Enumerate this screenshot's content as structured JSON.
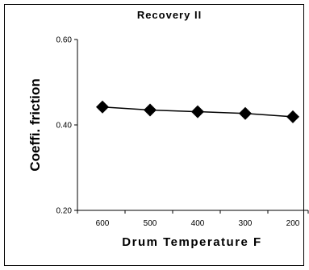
{
  "chart_data": {
    "type": "line",
    "title": "Recovery II",
    "xlabel": "Drum Temperature F",
    "ylabel": "Coeffi. friction",
    "categories": [
      "600",
      "500",
      "400",
      "300",
      "200"
    ],
    "series": [
      {
        "values": [
          0.442,
          0.435,
          0.431,
          0.427,
          0.419
        ]
      }
    ],
    "ylim": [
      0.2,
      0.6
    ],
    "yticks": [
      "0.20",
      "0.40",
      "0.60"
    ],
    "grid": false,
    "legend": "none",
    "marker": "diamond",
    "line_color": "#000000"
  }
}
